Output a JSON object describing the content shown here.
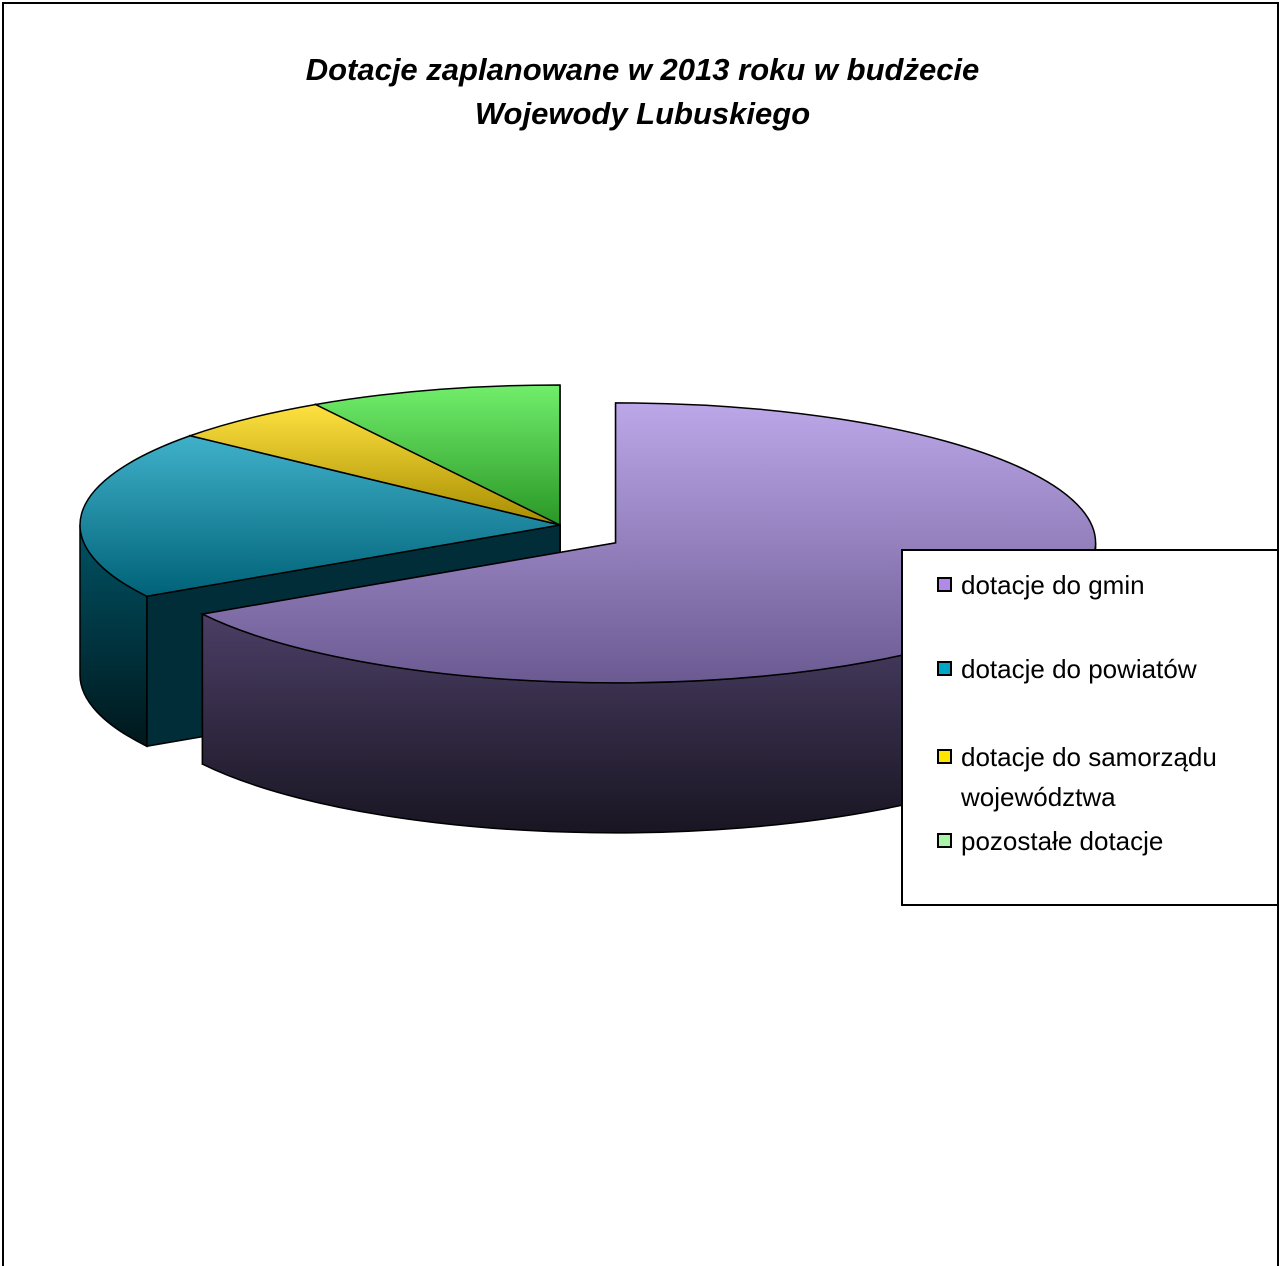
{
  "chart_data": {
    "type": "pie",
    "title": "Dotacje zaplanowane  w 2013 roku w budżecie Wojewody Lubuskiego",
    "title_lines": [
      "Dotacje zaplanowane  w 2013 roku w budżecie",
      "Wojewody Lubuskiego"
    ],
    "three_d": true,
    "legend_position": "right",
    "categories": [
      "dotacje do gmin",
      "dotacje do powiatów",
      "dotacje do samorządu województwa",
      "pozostałe dotacje"
    ],
    "values": [
      66.5,
      19.5,
      5.5,
      8.5
    ],
    "value_unit": "percent",
    "colors": [
      "#a58ae0",
      "#0097b8",
      "#ffd800",
      "#41e83a"
    ],
    "exploded_slice": "dotacje do gmin"
  },
  "legend": {
    "items": [
      {
        "label": "dotacje do gmin",
        "color": "#b08ae6"
      },
      {
        "label": "dotacje do powiatów",
        "color": "#00a6c6"
      },
      {
        "label": "dotacje do samorządu województwa",
        "color": "#ffe600"
      },
      {
        "label": "pozostałe dotacje",
        "color": "#a8f5a8"
      }
    ]
  }
}
